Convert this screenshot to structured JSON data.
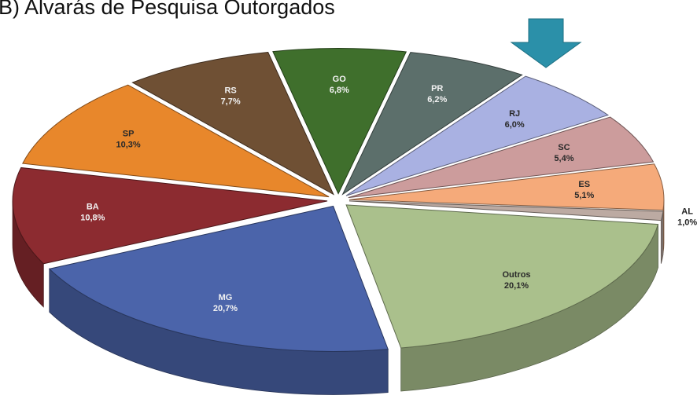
{
  "chart_data": {
    "type": "pie",
    "title": "B) Alvarás de Pesquisa Outorgados",
    "categories": [
      "GO",
      "PR",
      "RJ",
      "SC",
      "ES",
      "AL",
      "Outros",
      "MG",
      "BA",
      "SP",
      "RS"
    ],
    "values": [
      6.8,
      6.2,
      6.0,
      5.4,
      5.1,
      1.0,
      20.1,
      20.7,
      10.8,
      10.3,
      7.7
    ],
    "value_labels": [
      "6,8%",
      "6,2%",
      "6,0%",
      "5,4%",
      "5,1%",
      "1,0%",
      "20,1%",
      "20,7%",
      "10,8%",
      "10,3%",
      "7,7%"
    ],
    "colors": [
      "#3f6f2c",
      "#5c6f6b",
      "#a9b1e2",
      "#cc9c9c",
      "#f5aa7a",
      "#bcaaa2",
      "#aac08c",
      "#4b64aa",
      "#8c2b30",
      "#e8872b",
      "#6f5034"
    ]
  }
}
